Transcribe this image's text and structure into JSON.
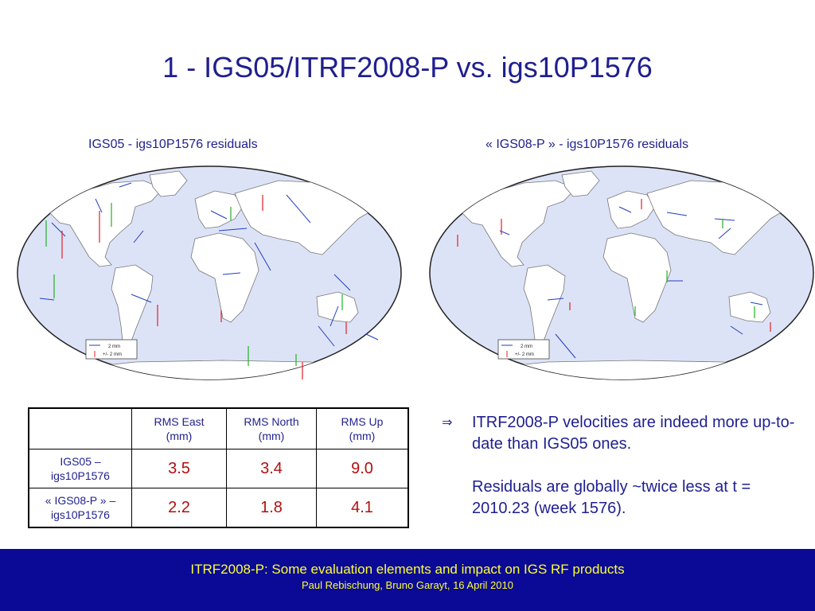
{
  "slide": {
    "title": "1 - IGS05/ITRF2008-P vs. igs10P1576"
  },
  "maps": [
    {
      "caption": "IGS05 - igs10P1576 residuals",
      "legend": {
        "horizontal_label": "2 mm",
        "vertical_label": "+/- 2 mm"
      }
    },
    {
      "caption": "« IGS08-P » - igs10P1576 residuals",
      "legend": {
        "horizontal_label": "2 mm",
        "vertical_label": "+/- 2 mm"
      }
    }
  ],
  "table": {
    "columns": [
      "",
      "RMS East\n(mm)",
      "RMS North\n(mm)",
      "RMS Up\n(mm)"
    ],
    "rows": [
      {
        "label": "IGS05 –\nigs10P1576",
        "values": [
          "3.5",
          "3.4",
          "9.0"
        ]
      },
      {
        "label": "« IGS08-P » –\nigs10P1576",
        "values": [
          "2.2",
          "1.8",
          "4.1"
        ]
      }
    ]
  },
  "bullet": {
    "arrow": "⇒",
    "paragraphs": [
      "ITRF2008-P velocities are indeed more up-to-date than IGS05 ones.",
      "Residuals are globally ~twice less at t = 2010.23 (week 1576)."
    ]
  },
  "footer": {
    "title": "ITRF2008-P: Some evaluation elements and impact on IGS RF products",
    "subtitle": "Paul Rebischung, Bruno Garayt, 16 April 2010"
  },
  "colors": {
    "title_text": "#1f1f8f",
    "ocean": "#dde3f7",
    "land": "#ffffff",
    "horizontal_residual": "#1f3fbf",
    "vertical_residual_pos": "#21b021",
    "vertical_residual_neg": "#e0202a",
    "table_values": "#b01010",
    "footer_bg": "#0a0a96",
    "footer_text": "#ffff33"
  }
}
